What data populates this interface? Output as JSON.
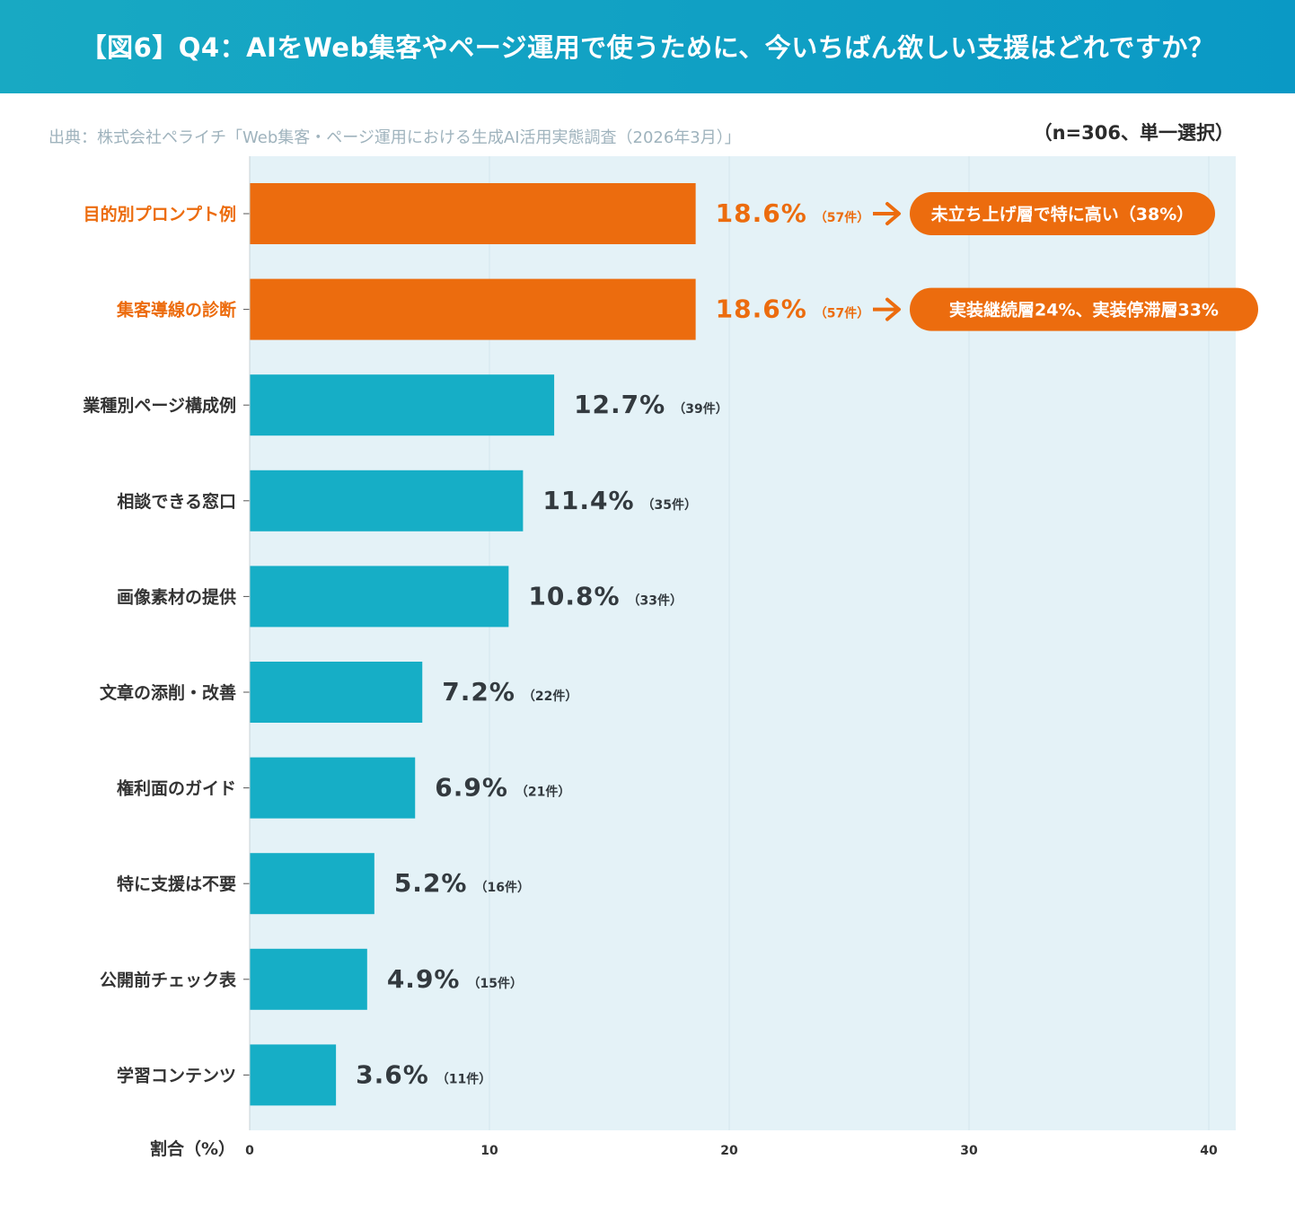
{
  "header": {
    "title": "【図6】Q4：AIをWeb集客やページ運用で使うために、今いちばん欲しい支援はどれですか？"
  },
  "source": "出典：株式会社ペライチ「Web集客・ページ運用における生成AI活用実態調査（2026年3月）」",
  "sample_note": "（n=306、単一選択）",
  "colors": {
    "highlight": "#ec6c0e",
    "bar": "#16aec6",
    "plot_bg": "#e4f2f7",
    "header": "#0fa1c4",
    "value_text": "#333a3f"
  },
  "chart_data": {
    "type": "bar",
    "orientation": "horizontal",
    "categories": [
      "目的別プロンプト例",
      "集客導線の診断",
      "業種別ページ構成例",
      "相談できる窓口",
      "画像素材の提供",
      "文章の添削・改善",
      "権利面のガイド",
      "特に支援は不要",
      "公開前チェック表",
      "学習コンテンツ"
    ],
    "values": [
      18.6,
      18.6,
      12.7,
      11.4,
      10.8,
      7.2,
      6.9,
      5.2,
      4.9,
      3.6
    ],
    "value_labels": [
      "18.6%",
      "18.6%",
      "12.7%",
      "11.4%",
      "10.8%",
      "7.2%",
      "6.9%",
      "5.2%",
      "4.9%",
      "3.6%"
    ],
    "count_labels": [
      "（57件）",
      "（57件）",
      "（39件）",
      "（35件）",
      "（33件）",
      "（22件）",
      "（21件）",
      "（16件）",
      "（15件）",
      "（11件）"
    ],
    "highlighted": [
      true,
      true,
      false,
      false,
      false,
      false,
      false,
      false,
      false,
      false
    ],
    "callouts": [
      {
        "category_index": 0,
        "text": "未立ち上げ層で特に高い（38%）"
      },
      {
        "category_index": 1,
        "text": "実装継続層24%、実装停滞層33%"
      }
    ],
    "xlabel": "割合（%）",
    "ylabel": "",
    "xlim": [
      0,
      41
    ],
    "xticks": [
      0,
      10,
      20,
      30,
      40
    ],
    "grid": true
  }
}
